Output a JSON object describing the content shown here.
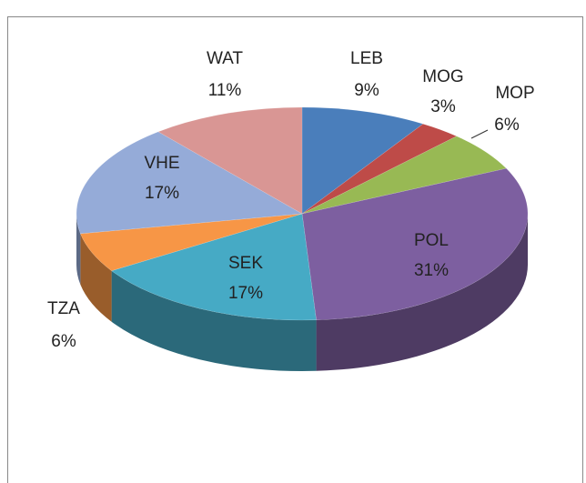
{
  "chart_data": {
    "type": "pie3d",
    "categories": [
      "LEB",
      "MOG",
      "MOP",
      "POL",
      "SEK",
      "TZA",
      "VHE",
      "WAT"
    ],
    "values": [
      9,
      3,
      6,
      31,
      17,
      6,
      17,
      11
    ],
    "value_labels": [
      "9%",
      "3%",
      "6%",
      "31%",
      "17%",
      "6%",
      "17%",
      "11%"
    ],
    "colors": [
      "#4a7ebb",
      "#be4b48",
      "#98b954",
      "#7d5fa0",
      "#46aac5",
      "#f79646",
      "#95abd8",
      "#d99694"
    ]
  }
}
